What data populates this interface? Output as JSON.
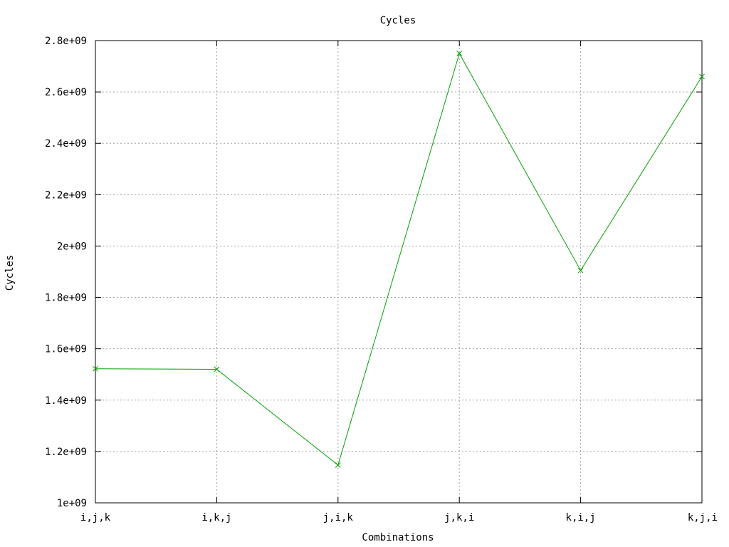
{
  "chart_data": {
    "type": "line",
    "title": "Cycles",
    "xlabel": "Combinations",
    "ylabel": "Cycles",
    "categories": [
      "i,j,k",
      "i,k,j",
      "j,i,k",
      "j,k,i",
      "k,i,j",
      "k,j,i"
    ],
    "series": [
      {
        "values": [
          1522000000,
          1520000000,
          1147000000,
          2750000000,
          1905000000,
          2660000000
        ],
        "color": "#00a000",
        "marker": "x"
      }
    ],
    "ylim": [
      1000000000,
      2800000000
    ],
    "yticks": [
      1000000000,
      1200000000,
      1400000000,
      1600000000,
      1800000000,
      2000000000,
      2200000000,
      2400000000,
      2600000000,
      2800000000
    ],
    "ytick_labels": [
      "1e+09",
      "1.2e+09",
      "1.4e+09",
      "1.6e+09",
      "1.8e+09",
      "2e+09",
      "2.2e+09",
      "2.4e+09",
      "2.6e+09",
      "2.8e+09"
    ],
    "grid": true
  }
}
